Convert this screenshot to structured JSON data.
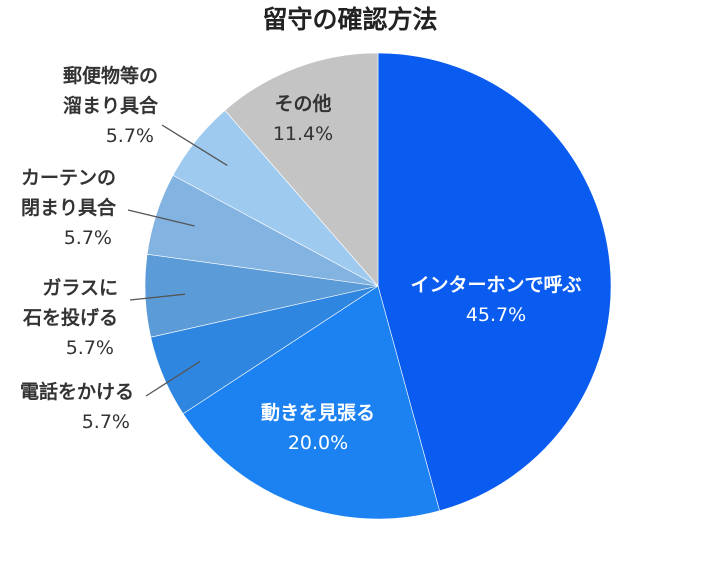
{
  "chart_data": {
    "type": "pie",
    "title": "留守の確認方法",
    "slices": [
      {
        "label_lines": [
          "インターホンで呼ぶ"
        ],
        "value": 45.7,
        "value_label": "45.7%",
        "color": "#0a5cf0",
        "label_placement": "inside",
        "text_color": "#ffffff"
      },
      {
        "label_lines": [
          "動きを見張る"
        ],
        "value": 20.0,
        "value_label": "20.0%",
        "color": "#1c82f2",
        "label_placement": "inside",
        "text_color": "#ffffff"
      },
      {
        "label_lines": [
          "電話をかける"
        ],
        "value": 5.7,
        "value_label": "5.7%",
        "color": "#2f86e0",
        "label_placement": "outside",
        "text_color": "#333333"
      },
      {
        "label_lines": [
          "ガラスに",
          "石を投げる"
        ],
        "value": 5.7,
        "value_label": "5.7%",
        "color": "#5b9bd8",
        "label_placement": "outside",
        "text_color": "#333333"
      },
      {
        "label_lines": [
          "カーテンの",
          "閉まり具合"
        ],
        "value": 5.7,
        "value_label": "5.7%",
        "color": "#83b3e1",
        "label_placement": "outside",
        "text_color": "#333333"
      },
      {
        "label_lines": [
          "郵便物等の",
          "溜まり具合"
        ],
        "value": 5.7,
        "value_label": "5.7%",
        "color": "#9fcaf0",
        "label_placement": "outside",
        "text_color": "#333333"
      },
      {
        "label_lines": [
          "その他"
        ],
        "value": 11.4,
        "value_label": "11.4%",
        "color": "#c4c4c4",
        "label_placement": "inside",
        "text_color": "#333333"
      }
    ],
    "start_angle": "12 o'clock",
    "direction": "clockwise",
    "legend": "none"
  }
}
